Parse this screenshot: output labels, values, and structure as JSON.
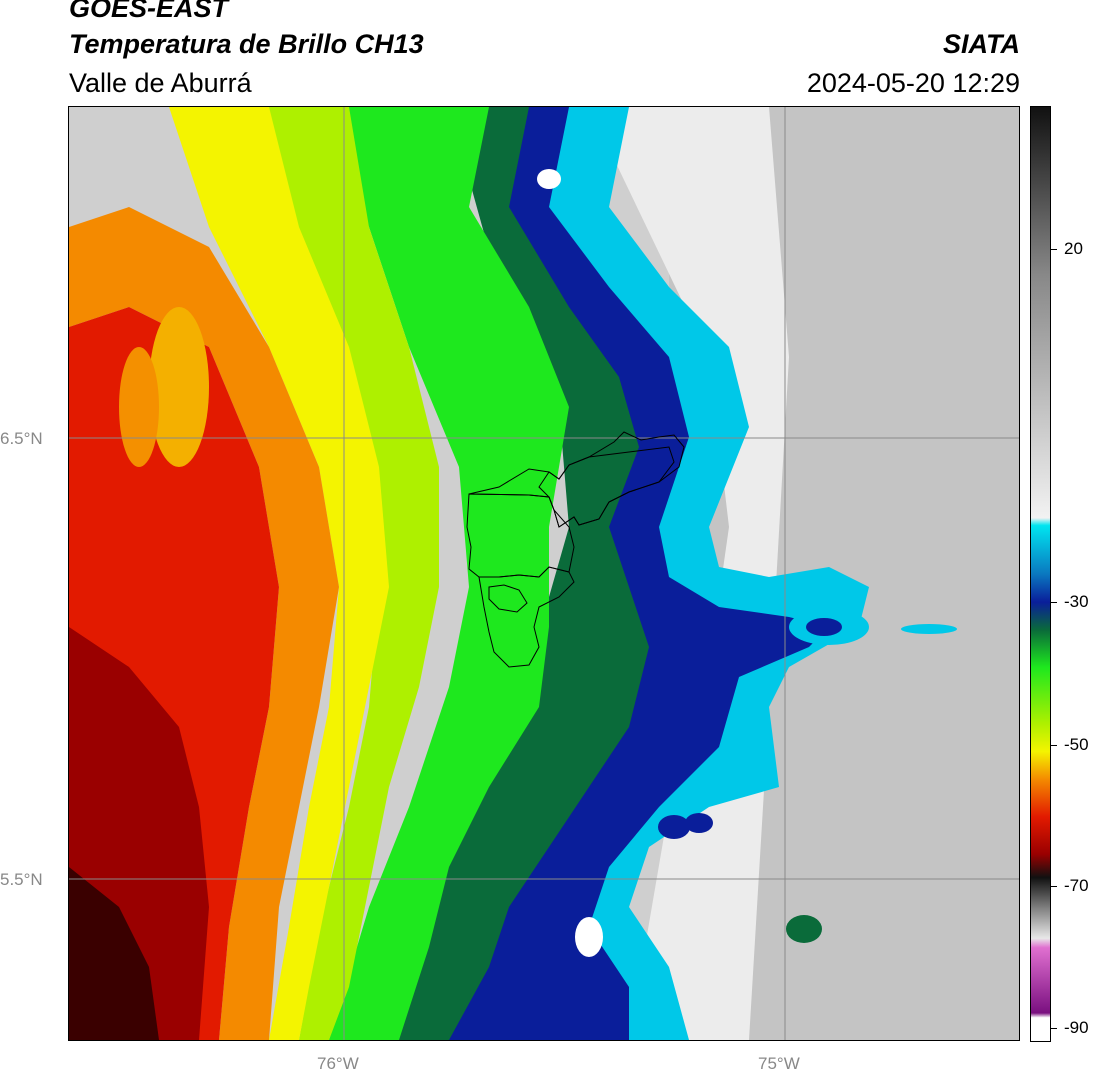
{
  "header": {
    "satellite": "GOES-EAST",
    "product": "Temperatura de Brillo CH13",
    "region": "Valle de Aburrá",
    "organization": "SIATA",
    "timestamp": "2024-05-20 12:29"
  },
  "map": {
    "latitude_labels": [
      "6.5°N",
      "5.5°N"
    ],
    "longitude_labels": [
      "76°W",
      "75°W"
    ]
  },
  "colorbar": {
    "tick_labels": [
      "20",
      "-30",
      "-50",
      "-70",
      "-90"
    ],
    "colors": {
      "warm_gray_light": "#f2f2f2",
      "warm_gray_dark": "#111111",
      "cyan": "#00e5f0",
      "blue": "#0a1e9a",
      "dark_green": "#0a6b3a",
      "green": "#1ee81e",
      "yellow": "#f4f400",
      "orange": "#f48a00",
      "red": "#e21a00",
      "dark_red": "#3a0000",
      "magenta": "#e070d0",
      "purple": "#7a1080"
    }
  }
}
